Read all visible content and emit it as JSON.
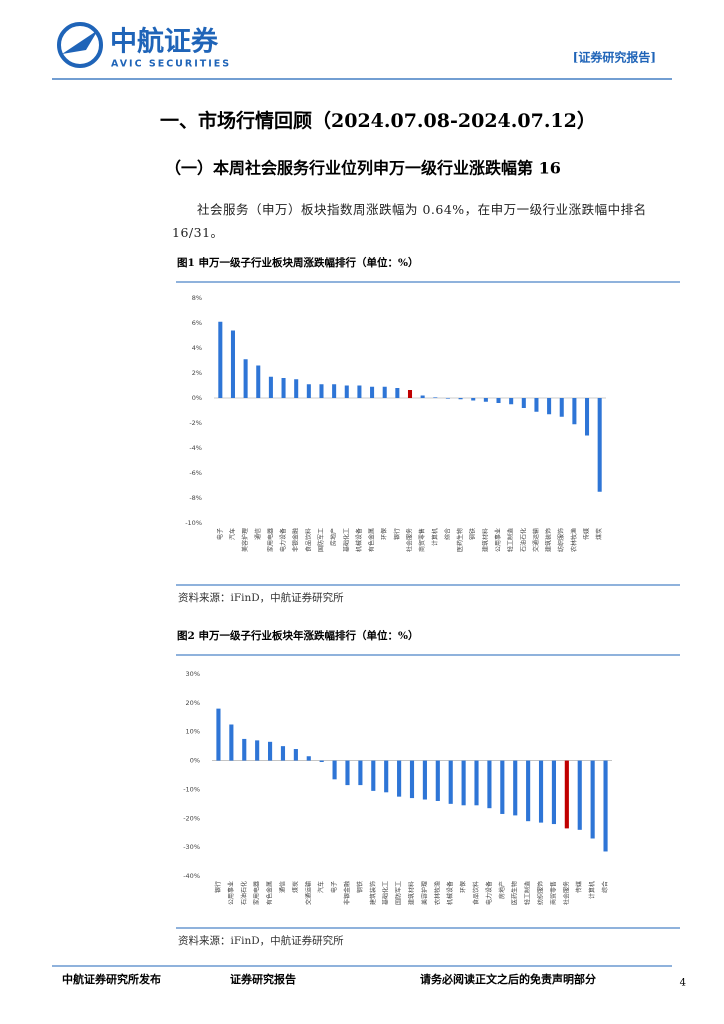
{
  "header": {
    "logo_cn": "中航证券",
    "logo_en": "AVIC SECURITIES",
    "tag": "[证券研究报告]"
  },
  "heading": "一、市场行情回顾（2024.07.08-2024.07.12）",
  "subheading": "（一）本周社会服务行业位列申万一级行业涨跌幅第 16",
  "paragraph": "社会服务（申万）板块指数周涨跌幅为 0.64%，在申万一级行业涨跌幅中排名 16/31。",
  "figures": [
    {
      "caption": "图1  申万一级子行业板块周涨跌幅排行（单位：%）",
      "source": "资料来源：iFinD，中航证券研究所"
    },
    {
      "caption": "图2  申万一级子行业板块年涨跌幅排行（单位：%）",
      "source": "资料来源：iFinD，中航证券研究所"
    }
  ],
  "chart_data": [
    {
      "type": "bar",
      "categories": [
        "电子",
        "汽车",
        "美容护理",
        "通信",
        "家用电器",
        "电力设备",
        "非银金融",
        "食品饮料",
        "国防军工",
        "房地产",
        "基础化工",
        "机械设备",
        "有色金属",
        "环保",
        "银行",
        "社会服务",
        "商贸零售",
        "计算机",
        "综合",
        "医药生物",
        "钢铁",
        "建筑材料",
        "公用事业",
        "轻工制造",
        "石油石化",
        "交通运输",
        "建筑装饰",
        "纺织服饰",
        "农林牧渔",
        "传媒",
        "煤炭"
      ],
      "values": [
        6.1,
        5.4,
        3.1,
        2.6,
        1.7,
        1.6,
        1.5,
        1.1,
        1.1,
        1.1,
        1.0,
        1.0,
        0.9,
        0.9,
        0.8,
        0.64,
        0.2,
        0.05,
        -0.05,
        -0.1,
        -0.2,
        -0.3,
        -0.4,
        -0.5,
        -0.8,
        -1.1,
        -1.3,
        -1.5,
        -2.1,
        -3.0,
        -7.5
      ],
      "colors": [
        "#2e75d6",
        "#2e75d6",
        "#2e75d6",
        "#2e75d6",
        "#2e75d6",
        "#2e75d6",
        "#2e75d6",
        "#2e75d6",
        "#2e75d6",
        "#2e75d6",
        "#2e75d6",
        "#2e75d6",
        "#2e75d6",
        "#2e75d6",
        "#2e75d6",
        "#c00000",
        "#2e75d6",
        "#2e75d6",
        "#2e75d6",
        "#2e75d6",
        "#2e75d6",
        "#2e75d6",
        "#2e75d6",
        "#2e75d6",
        "#2e75d6",
        "#2e75d6",
        "#2e75d6",
        "#2e75d6",
        "#2e75d6",
        "#2e75d6",
        "#2e75d6"
      ],
      "ylim": [
        -10,
        8
      ],
      "yticks": [
        {
          "value": -10,
          "label": "-10%"
        },
        {
          "value": -8,
          "label": "-8%"
        },
        {
          "value": -6,
          "label": "-6%"
        },
        {
          "value": -4,
          "label": "-4%"
        },
        {
          "value": -2,
          "label": "-2%"
        },
        {
          "value": 0,
          "label": "0%"
        },
        {
          "value": 2,
          "label": "2%"
        },
        {
          "value": 4,
          "label": "4%"
        },
        {
          "value": 6,
          "label": "6%"
        },
        {
          "value": 8,
          "label": "8%"
        }
      ],
      "grid": false
    },
    {
      "type": "bar",
      "categories": [
        "银行",
        "公用事业",
        "石油石化",
        "家用电器",
        "有色金属",
        "通信",
        "煤炭",
        "交通运输",
        "汽车",
        "电子",
        "非银金融",
        "钢铁",
        "建筑装饰",
        "基础化工",
        "国防军工",
        "建筑材料",
        "美容护理",
        "农林牧渔",
        "机械设备",
        "环保",
        "食品饮料",
        "电力设备",
        "房地产",
        "医药生物",
        "轻工制造",
        "纺织服饰",
        "商贸零售",
        "社会服务",
        "传媒",
        "计算机",
        "综合"
      ],
      "values": [
        18,
        12.5,
        7.5,
        7,
        6.5,
        5,
        4,
        1.5,
        -0.5,
        -6.5,
        -8.5,
        -8.5,
        -10.5,
        -11,
        -12.5,
        -13,
        -13.5,
        -14,
        -15,
        -15.5,
        -15.5,
        -16.5,
        -18.5,
        -19,
        -21,
        -21.5,
        -22,
        -23.5,
        -24,
        -27,
        -31.5
      ],
      "colors": [
        "#2e75d6",
        "#2e75d6",
        "#2e75d6",
        "#2e75d6",
        "#2e75d6",
        "#2e75d6",
        "#2e75d6",
        "#2e75d6",
        "#2e75d6",
        "#2e75d6",
        "#2e75d6",
        "#2e75d6",
        "#2e75d6",
        "#2e75d6",
        "#2e75d6",
        "#2e75d6",
        "#2e75d6",
        "#2e75d6",
        "#2e75d6",
        "#2e75d6",
        "#2e75d6",
        "#2e75d6",
        "#2e75d6",
        "#2e75d6",
        "#2e75d6",
        "#2e75d6",
        "#2e75d6",
        "#c00000",
        "#2e75d6",
        "#2e75d6",
        "#2e75d6"
      ],
      "ylim": [
        -40,
        30
      ],
      "yticks": [
        {
          "value": -40,
          "label": "-40%"
        },
        {
          "value": -30,
          "label": "-30%"
        },
        {
          "value": -20,
          "label": "-20%"
        },
        {
          "value": -10,
          "label": "-10%"
        },
        {
          "value": 0,
          "label": "0%"
        },
        {
          "value": 10,
          "label": "10%"
        },
        {
          "value": 20,
          "label": "20%"
        },
        {
          "value": 30,
          "label": "30%"
        }
      ],
      "grid": false
    }
  ],
  "footer": {
    "left": "中航证券研究所发布",
    "center": "证券研究报告",
    "right": "请务必阅读正文之后的免责声明部分",
    "page": "4"
  }
}
